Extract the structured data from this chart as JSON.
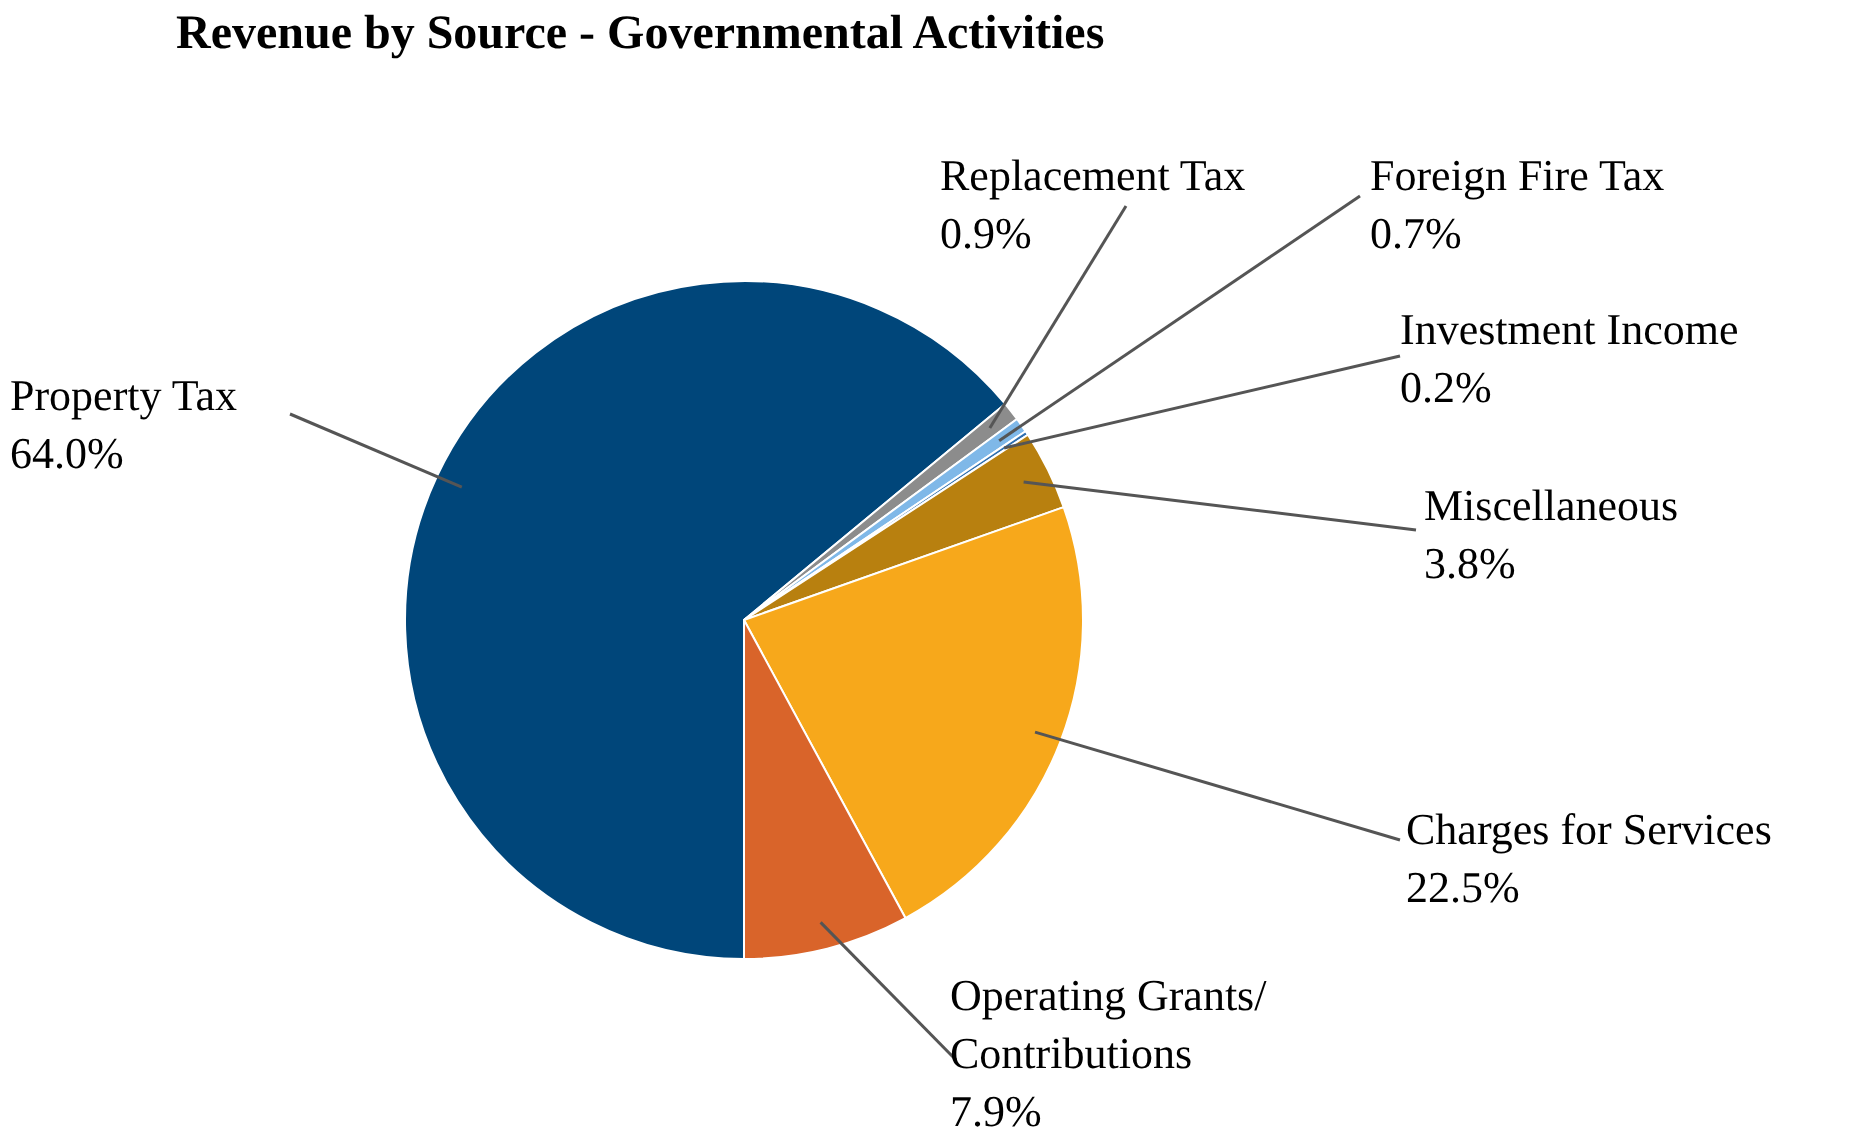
{
  "chart_data": {
    "type": "pie",
    "title": "Revenue by Source - Governmental Activities",
    "categories": [
      "Property Tax",
      "Replacement Tax",
      "Foreign Fire Tax",
      "Investment Income",
      "Miscellaneous",
      "Charges for Services",
      "Operating Grants/ Contributions"
    ],
    "values": [
      64.0,
      0.9,
      0.7,
      0.2,
      3.8,
      22.5,
      7.9
    ],
    "value_labels": [
      "64.0%",
      "0.9%",
      "0.7%",
      "0.2%",
      "3.8%",
      "22.5%",
      "7.9%"
    ],
    "colors": [
      "#00467a",
      "#8c8c8c",
      "#7fb8e8",
      "#2f6fb0",
      "#b8800f",
      "#f7a81b",
      "#d9642a"
    ]
  }
}
